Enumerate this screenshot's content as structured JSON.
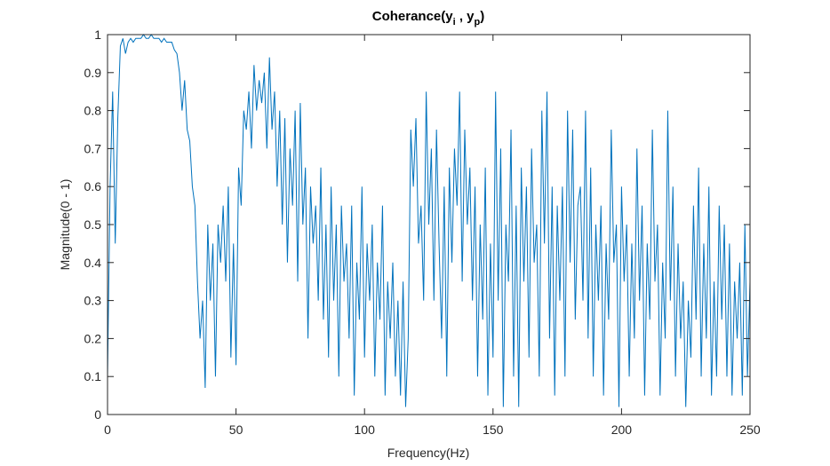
{
  "chart_data": {
    "type": "line",
    "title": [
      "Coherance(y",
      "i",
      " , y",
      "p",
      ")"
    ],
    "x_label": "Frequency(Hz)",
    "y_label": "Magnitude(0 - 1)",
    "color": "#0072bd",
    "xlim": [
      0,
      250
    ],
    "xticks": [
      0,
      50,
      100,
      150,
      200,
      250
    ],
    "ylim": [
      0,
      1
    ],
    "yticks": [
      0,
      0.1,
      0.2,
      0.3,
      0.4,
      0.5,
      0.6,
      0.7,
      0.8,
      0.9,
      1
    ],
    "x": [
      0,
      1,
      2,
      3,
      4,
      5,
      6,
      7,
      8,
      9,
      10,
      11,
      12,
      13,
      14,
      15,
      16,
      17,
      18,
      19,
      20,
      21,
      22,
      23,
      24,
      25,
      26,
      27,
      28,
      29,
      30,
      31,
      32,
      33,
      34,
      35,
      36,
      37,
      38,
      39,
      40,
      41,
      42,
      43,
      44,
      45,
      46,
      47,
      48,
      49,
      50,
      51,
      52,
      53,
      54,
      55,
      56,
      57,
      58,
      59,
      60,
      61,
      62,
      63,
      64,
      65,
      66,
      67,
      68,
      69,
      70,
      71,
      72,
      73,
      74,
      75,
      76,
      77,
      78,
      79,
      80,
      81,
      82,
      83,
      84,
      85,
      86,
      87,
      88,
      89,
      90,
      91,
      92,
      93,
      94,
      95,
      96,
      97,
      98,
      99,
      100,
      101,
      102,
      103,
      104,
      105,
      106,
      107,
      108,
      109,
      110,
      111,
      112,
      113,
      114,
      115,
      116,
      117,
      118,
      119,
      120,
      121,
      122,
      123,
      124,
      125,
      126,
      127,
      128,
      129,
      130,
      131,
      132,
      133,
      134,
      135,
      136,
      137,
      138,
      139,
      140,
      141,
      142,
      143,
      144,
      145,
      146,
      147,
      148,
      149,
      150,
      151,
      152,
      153,
      154,
      155,
      156,
      157,
      158,
      159,
      160,
      161,
      162,
      163,
      164,
      165,
      166,
      167,
      168,
      169,
      170,
      171,
      172,
      173,
      174,
      175,
      176,
      177,
      178,
      179,
      180,
      181,
      182,
      183,
      184,
      185,
      186,
      187,
      188,
      189,
      190,
      191,
      192,
      193,
      194,
      195,
      196,
      197,
      198,
      199,
      200,
      201,
      202,
      203,
      204,
      205,
      206,
      207,
      208,
      209,
      210,
      211,
      212,
      213,
      214,
      215,
      216,
      217,
      218,
      219,
      220,
      221,
      222,
      223,
      224,
      225,
      226,
      227,
      228,
      229,
      230,
      231,
      232,
      233,
      234,
      235,
      236,
      237,
      238,
      239,
      240,
      241,
      242,
      243,
      244,
      245,
      246,
      247,
      248,
      249,
      250
    ],
    "values": [
      0.1,
      0.6,
      0.85,
      0.45,
      0.78,
      0.97,
      0.99,
      0.95,
      0.98,
      0.99,
      0.98,
      0.99,
      0.99,
      0.99,
      1,
      0.99,
      0.99,
      1,
      0.99,
      0.99,
      0.99,
      0.98,
      0.99,
      0.98,
      0.98,
      0.98,
      0.96,
      0.95,
      0.9,
      0.8,
      0.88,
      0.75,
      0.72,
      0.6,
      0.55,
      0.35,
      0.2,
      0.3,
      0.07,
      0.5,
      0.3,
      0.45,
      0.1,
      0.5,
      0.4,
      0.55,
      0.35,
      0.6,
      0.15,
      0.45,
      0.13,
      0.65,
      0.55,
      0.8,
      0.75,
      0.85,
      0.7,
      0.92,
      0.8,
      0.88,
      0.82,
      0.9,
      0.7,
      0.94,
      0.75,
      0.85,
      0.6,
      0.8,
      0.5,
      0.78,
      0.4,
      0.7,
      0.55,
      0.8,
      0.35,
      0.82,
      0.5,
      0.65,
      0.2,
      0.6,
      0.45,
      0.55,
      0.3,
      0.65,
      0.25,
      0.5,
      0.15,
      0.6,
      0.3,
      0.5,
      0.1,
      0.55,
      0.35,
      0.45,
      0.2,
      0.55,
      0.05,
      0.4,
      0.25,
      0.6,
      0.15,
      0.45,
      0.3,
      0.5,
      0.1,
      0.4,
      0.25,
      0.55,
      0.05,
      0.35,
      0.2,
      0.4,
      0.1,
      0.3,
      0.05,
      0.35,
      0.02,
      0.2,
      0.75,
      0.6,
      0.78,
      0.45,
      0.55,
      0.3,
      0.85,
      0.5,
      0.7,
      0.3,
      0.75,
      0.45,
      0.2,
      0.6,
      0.1,
      0.65,
      0.4,
      0.7,
      0.55,
      0.85,
      0.35,
      0.75,
      0.5,
      0.65,
      0.3,
      0.6,
      0.1,
      0.5,
      0.25,
      0.65,
      0.05,
      0.45,
      0.15,
      0.85,
      0.3,
      0.7,
      0.02,
      0.5,
      0.35,
      0.75,
      0.1,
      0.55,
      0.02,
      0.65,
      0.35,
      0.6,
      0.15,
      0.7,
      0.4,
      0.5,
      0.1,
      0.8,
      0.45,
      0.85,
      0.2,
      0.6,
      0.05,
      0.55,
      0.3,
      0.6,
      0.1,
      0.8,
      0.4,
      0.75,
      0.25,
      0.55,
      0.6,
      0.3,
      0.8,
      0.2,
      0.65,
      0.1,
      0.5,
      0.3,
      0.55,
      0.05,
      0.45,
      0.25,
      0.75,
      0.4,
      0.5,
      0.02,
      0.6,
      0.35,
      0.5,
      0.1,
      0.45,
      0.2,
      0.7,
      0.3,
      0.55,
      0.05,
      0.45,
      0.25,
      0.75,
      0.35,
      0.5,
      0.05,
      0.4,
      0.2,
      0.8,
      0.3,
      0.6,
      0.1,
      0.45,
      0.2,
      0.35,
      0.02,
      0.3,
      0.15,
      0.55,
      0.25,
      0.65,
      0.1,
      0.45,
      0.2,
      0.6,
      0.05,
      0.35,
      0.1,
      0.55,
      0.25,
      0.5,
      0.1,
      0.45,
      0.05,
      0.35,
      0.2,
      0.4,
      0.05,
      0.5,
      0.1,
      0.35
    ]
  }
}
